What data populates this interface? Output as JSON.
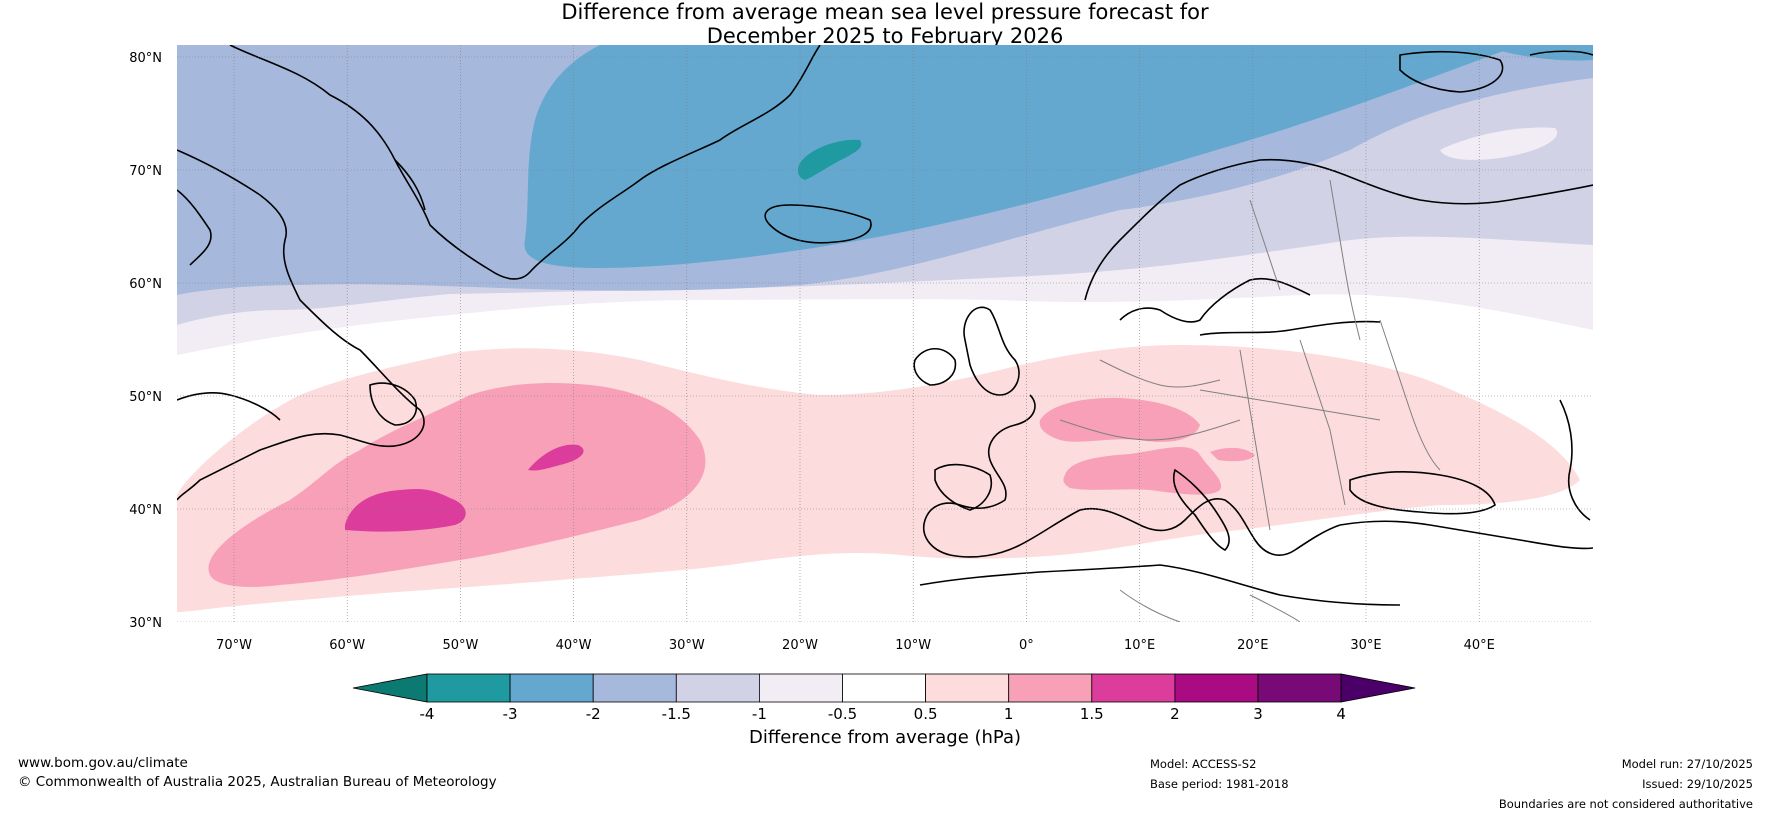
{
  "title": {
    "line1": "Difference from average mean sea level pressure forecast for",
    "line2": "December 2025 to February 2026"
  },
  "axes": {
    "lat_ticks": [
      "80°N",
      "70°N",
      "60°N",
      "50°N",
      "40°N",
      "30°N"
    ],
    "lon_ticks": [
      "70°W",
      "60°W",
      "50°W",
      "40°W",
      "30°W",
      "20°W",
      "10°W",
      "0°",
      "10°E",
      "20°E",
      "30°E",
      "40°E"
    ]
  },
  "colorbar": {
    "label": "Difference from average (hPa)",
    "ticks": [
      "-4",
      "-3",
      "-2",
      "-1.5",
      "-1",
      "-0.5",
      "0.5",
      "1",
      "1.5",
      "2",
      "3",
      "4"
    ],
    "colors": [
      "#0c7a70",
      "#1e9aa0",
      "#64a8d0",
      "#a6b8dc",
      "#d2d2e6",
      "#f2ecf4",
      "#ffffff",
      "#fcdcdc",
      "#f8a0b8",
      "#dc3c9c",
      "#aa0a82",
      "#780a78",
      "#4a0068"
    ]
  },
  "footer": {
    "website": "www.bom.gov.au/climate",
    "copyright": "© Commonwealth of Australia 2025, Australian Bureau of Meteorology",
    "model": "Model: ACCESS-S2",
    "base_period": "Base period: 1981-2018",
    "model_run": "Model run: 27/10/2025",
    "issued": "Issued: 29/10/2025",
    "disclaimer": "Boundaries are not considered authoritative"
  }
}
